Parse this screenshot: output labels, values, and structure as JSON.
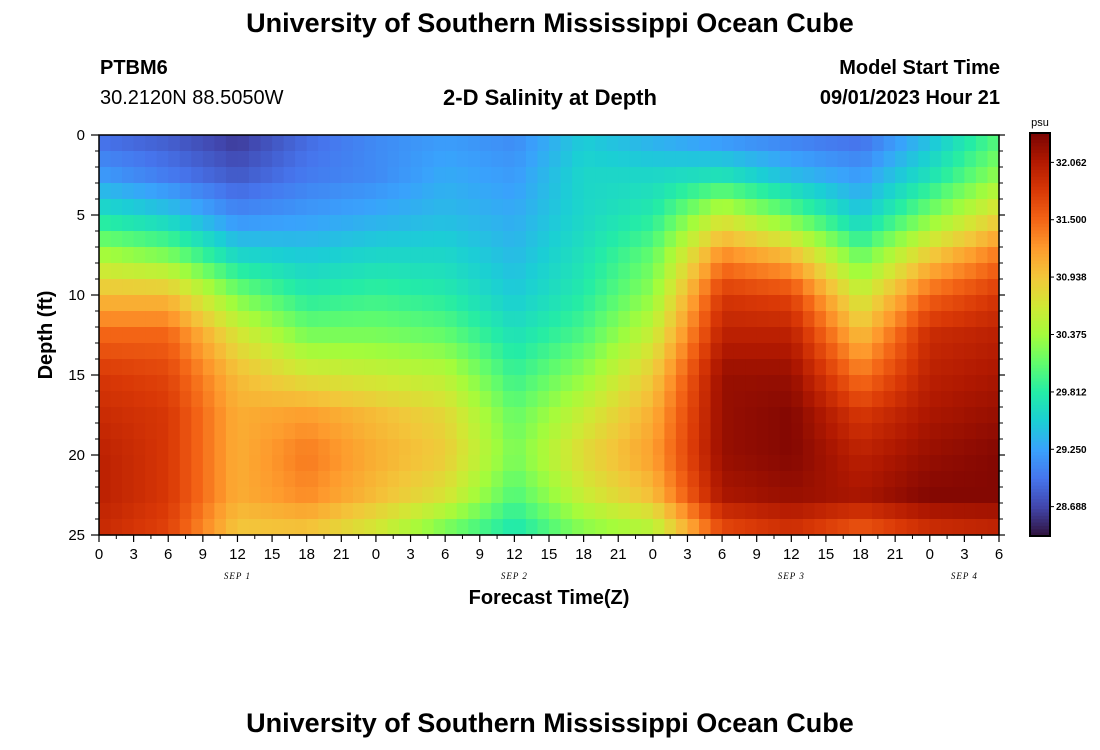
{
  "header": {
    "title": "University of Southern Mississippi Ocean Cube",
    "station_id": "PTBM6",
    "station_coords": "30.2120N  88.5050W",
    "subtitle": "2-D Salinity at Depth",
    "model_start_label": "Model Start Time",
    "model_start_value": "09/01/2023 Hour 21"
  },
  "footer": {
    "title": "University of Southern Mississippi Ocean Cube"
  },
  "chart_data": {
    "type": "heatmap",
    "title": "2-D Salinity at Depth",
    "xlabel": "Forecast Time(Z)",
    "ylabel": "Depth (ft)",
    "x_ticks": [
      "0",
      "3",
      "6",
      "9",
      "12",
      "15",
      "18",
      "21",
      "0",
      "3",
      "6",
      "9",
      "12",
      "15",
      "18",
      "21",
      "0",
      "3",
      "6",
      "9",
      "12",
      "15",
      "18",
      "21",
      "0",
      "3",
      "6"
    ],
    "x_range_hours": [
      0,
      78
    ],
    "day_labels": [
      {
        "label": "SEP 1",
        "hour": 12
      },
      {
        "label": "SEP 2",
        "hour": 36
      },
      {
        "label": "SEP 3",
        "hour": 60
      },
      {
        "label": "SEP 4",
        "hour": 75
      }
    ],
    "y_ticks": [
      "0",
      "5",
      "10",
      "15",
      "20",
      "25"
    ],
    "y_range_ft": [
      0,
      25
    ],
    "colorbar": {
      "unit": "psu",
      "min": 28.4,
      "max": 32.35,
      "tick_labels": [
        "32.062",
        "31.500",
        "30.938",
        "30.375",
        "29.812",
        "29.250",
        "28.688"
      ],
      "tick_values": [
        32.062,
        31.5,
        30.938,
        30.375,
        29.812,
        29.25,
        28.688
      ],
      "colormap": [
        "#30123b",
        "#4145ab",
        "#4675ed",
        "#39a2fc",
        "#1bcfd4",
        "#24eca6",
        "#61fc6c",
        "#a4fc3b",
        "#d1e834",
        "#f3c63a",
        "#fe9b2d",
        "#f36315",
        "#d93806",
        "#b11901",
        "#7a0402"
      ]
    },
    "salinity_grid": {
      "columns_hours": [
        0,
        6,
        12,
        18,
        24,
        30,
        36,
        42,
        48,
        54,
        60,
        66,
        72,
        78
      ],
      "rows_depth_ft": [
        0,
        2.5,
        5,
        7.5,
        10,
        12.5,
        15,
        17.5,
        20,
        22.5,
        25
      ],
      "values_psu": [
        [
          28.9,
          28.8,
          28.6,
          28.9,
          29.1,
          29.2,
          29.1,
          29.5,
          29.3,
          29.1,
          29.0,
          28.9,
          29.4,
          30.0
        ],
        [
          29.2,
          29.0,
          28.8,
          29.0,
          29.1,
          29.3,
          29.2,
          29.6,
          29.6,
          29.7,
          29.4,
          29.2,
          29.7,
          30.3
        ],
        [
          29.7,
          29.5,
          29.1,
          29.2,
          29.3,
          29.4,
          29.3,
          29.6,
          29.8,
          30.6,
          30.1,
          29.5,
          30.2,
          30.8
        ],
        [
          30.4,
          30.2,
          29.6,
          29.5,
          29.6,
          29.6,
          29.4,
          29.7,
          30.1,
          31.3,
          31.0,
          30.1,
          30.9,
          31.4
        ],
        [
          31.0,
          31.0,
          30.2,
          29.8,
          29.9,
          29.8,
          29.5,
          29.8,
          30.3,
          31.8,
          31.7,
          30.6,
          31.5,
          31.8
        ],
        [
          31.5,
          31.5,
          30.7,
          30.2,
          30.2,
          30.1,
          29.7,
          30.0,
          30.6,
          32.0,
          32.0,
          31.0,
          31.9,
          32.0
        ],
        [
          31.8,
          31.7,
          31.0,
          30.7,
          30.6,
          30.5,
          29.9,
          30.3,
          30.9,
          32.2,
          32.2,
          31.4,
          32.0,
          32.1
        ],
        [
          31.9,
          31.8,
          31.1,
          31.2,
          31.0,
          30.8,
          30.1,
          30.6,
          31.1,
          32.2,
          32.3,
          31.8,
          32.1,
          32.2
        ],
        [
          32.0,
          31.8,
          31.1,
          31.4,
          31.1,
          30.9,
          30.2,
          30.8,
          31.2,
          32.2,
          32.3,
          32.0,
          32.2,
          32.3
        ],
        [
          32.0,
          31.8,
          31.1,
          31.3,
          31.0,
          30.7,
          30.0,
          30.6,
          31.0,
          32.1,
          32.2,
          32.1,
          32.3,
          32.3
        ],
        [
          31.9,
          31.7,
          30.9,
          30.9,
          30.6,
          30.1,
          29.7,
          30.2,
          30.4,
          31.6,
          31.8,
          31.5,
          31.8,
          31.9
        ]
      ]
    }
  }
}
